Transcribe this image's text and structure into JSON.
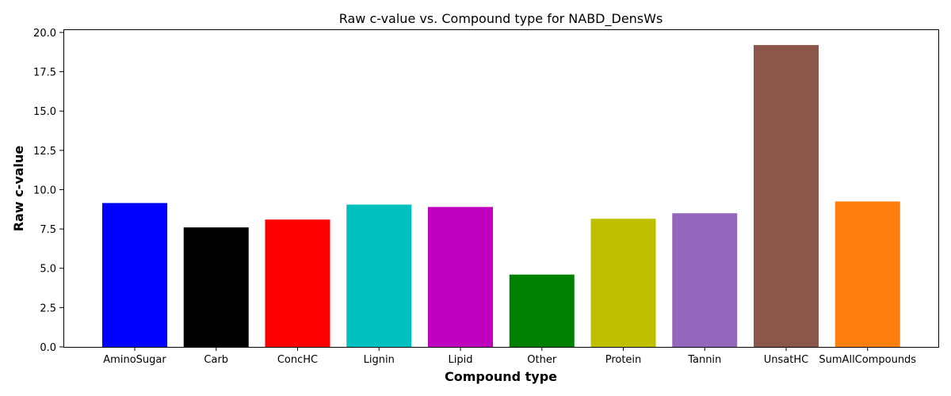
{
  "chart_data": {
    "type": "bar",
    "title": "Raw c-value vs. Compound type for NABD_DensWs",
    "xlabel": "Compound type",
    "ylabel": "Raw c-value",
    "categories": [
      "AminoSugar",
      "Carb",
      "ConcHC",
      "Lignin",
      "Lipid",
      "Other",
      "Protein",
      "Tannin",
      "UnsatHC",
      "SumAllCompounds"
    ],
    "values": [
      9.15,
      7.6,
      8.1,
      9.05,
      8.9,
      4.6,
      8.15,
      8.5,
      19.2,
      9.25
    ],
    "colors": [
      "#0000ff",
      "#000000",
      "#ff0000",
      "#00bfbf",
      "#bf00bf",
      "#008000",
      "#bfbf00",
      "#9467bd",
      "#8c564b",
      "#ff7f0e"
    ],
    "ylim": [
      0,
      20.2
    ],
    "yticks": [
      "0.0",
      "2.5",
      "5.0",
      "7.5",
      "10.0",
      "12.5",
      "15.0",
      "17.5",
      "20.0"
    ],
    "grid": false,
    "legend": false
  }
}
